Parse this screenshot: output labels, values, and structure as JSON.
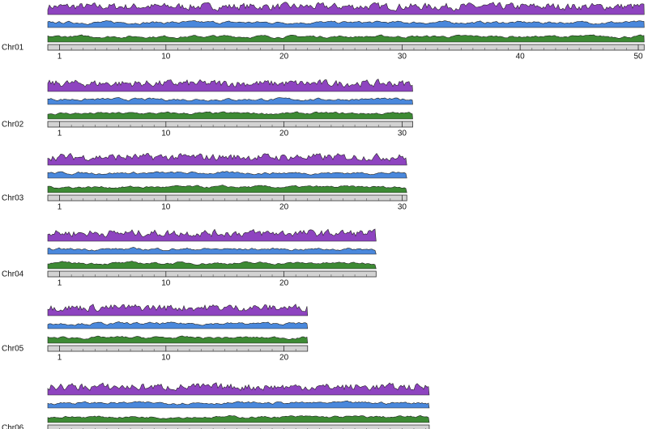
{
  "chromosomes": [
    {
      "name": "Chr01",
      "length": 50.5,
      "xticks": [
        1,
        10,
        20,
        30,
        40,
        50
      ]
    },
    {
      "name": "Chr02",
      "length": 30.9,
      "xticks": [
        1,
        10,
        20,
        30
      ]
    },
    {
      "name": "Chr03",
      "length": 30.4,
      "xticks": [
        1,
        10,
        20,
        30
      ]
    },
    {
      "name": "Chr04",
      "length": 27.8,
      "xticks": [
        1,
        10,
        20
      ]
    },
    {
      "name": "Chr05",
      "length": 22.0,
      "xticks": [
        1,
        10,
        20
      ]
    },
    {
      "name": "Chr06",
      "length": 32.3,
      "xticks": []
    }
  ]
}
